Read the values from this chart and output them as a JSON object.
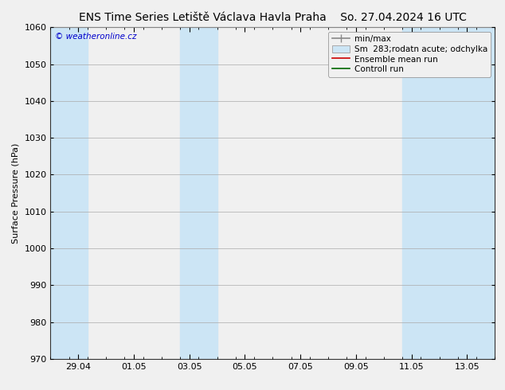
{
  "title": "ENS Time Series Letiště Václava Havla Praha",
  "title_right": "So. 27.04.2024 16 UTC",
  "ylabel": "Surface Pressure (hPa)",
  "watermark": "© weatheronline.cz",
  "ylim": [
    970,
    1060
  ],
  "yticks": [
    970,
    980,
    990,
    1000,
    1010,
    1020,
    1030,
    1040,
    1050,
    1060
  ],
  "xlim": [
    0,
    16
  ],
  "xtick_labels": [
    "29.04",
    "01.05",
    "03.05",
    "05.05",
    "07.05",
    "09.05",
    "11.05",
    "13.05"
  ],
  "xtick_positions": [
    1,
    3,
    5,
    7,
    9,
    11,
    13,
    15
  ],
  "shaded_bands": [
    {
      "start": 0.0,
      "end": 1.33
    },
    {
      "start": 4.67,
      "end": 6.0
    },
    {
      "start": 12.67,
      "end": 16.0
    }
  ],
  "band_color": "#cce5f5",
  "background_color": "#f0f0f0",
  "plot_bg_color": "#f0f0f0",
  "grid_color": "#aaaaaa",
  "title_fontsize": 10,
  "axis_fontsize": 8,
  "tick_fontsize": 8,
  "legend_fontsize": 7.5
}
